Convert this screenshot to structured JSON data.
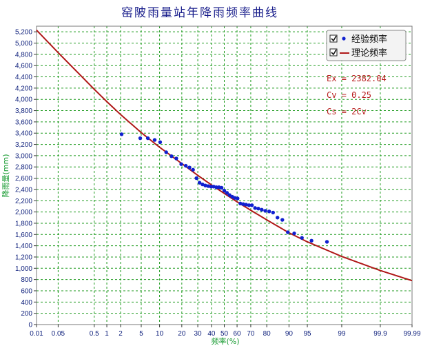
{
  "chart_data": {
    "type": "scatter",
    "title": "窑陂雨量站年降雨频率曲线",
    "xlabel": "频率(%)",
    "ylabel": "降雨量(mm)",
    "x_scale": "probability",
    "xlim": [
      0.01,
      99.99
    ],
    "ylim": [
      0,
      5300
    ],
    "grid": true,
    "x_ticks": [
      0.01,
      0.05,
      0.5,
      1,
      2,
      5,
      10,
      20,
      30,
      40,
      50,
      60,
      70,
      80,
      90,
      95,
      99,
      99.9,
      99.99
    ],
    "x_tick_labels": [
      "0.01",
      "0.05",
      "0.5",
      "1",
      "2",
      "5",
      "10",
      "20",
      "30",
      "40",
      "50",
      "60",
      "70",
      "80",
      "90",
      "95",
      "99",
      "99.9",
      "99.99"
    ],
    "y_ticks": [
      0,
      200,
      400,
      600,
      800,
      1000,
      1200,
      1400,
      1600,
      1800,
      2000,
      2200,
      2400,
      2600,
      2800,
      3000,
      3200,
      3400,
      3600,
      3800,
      4000,
      4200,
      4400,
      4600,
      4800,
      5000,
      5200
    ],
    "y_tick_labels": [
      "0",
      "200",
      "400",
      "600",
      "800",
      "1,000",
      "1,200",
      "1,400",
      "1,600",
      "1,800",
      "2,000",
      "2,200",
      "2,400",
      "2,600",
      "2,800",
      "3,000",
      "3,200",
      "3,400",
      "3,600",
      "3,800",
      "4,000",
      "4,200",
      "4,400",
      "4,600",
      "4,800",
      "5,000",
      "5,200"
    ],
    "legend_position": "top-right",
    "series": [
      {
        "name": "经验频率",
        "kind": "scatter",
        "color": "#1020d0",
        "points": [
          {
            "x": 2.1,
            "y": 3380
          },
          {
            "x": 4.8,
            "y": 3310
          },
          {
            "x": 6.5,
            "y": 3310
          },
          {
            "x": 8.4,
            "y": 3280
          },
          {
            "x": 10.2,
            "y": 3240
          },
          {
            "x": 12.5,
            "y": 3060
          },
          {
            "x": 14.8,
            "y": 2990
          },
          {
            "x": 17.1,
            "y": 2950
          },
          {
            "x": 19.7,
            "y": 2850
          },
          {
            "x": 22.3,
            "y": 2820
          },
          {
            "x": 24.5,
            "y": 2790
          },
          {
            "x": 26.8,
            "y": 2750
          },
          {
            "x": 29.1,
            "y": 2600
          },
          {
            "x": 31.2,
            "y": 2520
          },
          {
            "x": 33.3,
            "y": 2490
          },
          {
            "x": 35.4,
            "y": 2470
          },
          {
            "x": 37.5,
            "y": 2460
          },
          {
            "x": 39.6,
            "y": 2450
          },
          {
            "x": 41.7,
            "y": 2450
          },
          {
            "x": 43.8,
            "y": 2440
          },
          {
            "x": 45.8,
            "y": 2440
          },
          {
            "x": 47.9,
            "y": 2430
          },
          {
            "x": 50.0,
            "y": 2380
          },
          {
            "x": 52.1,
            "y": 2340
          },
          {
            "x": 54.2,
            "y": 2300
          },
          {
            "x": 56.3,
            "y": 2270
          },
          {
            "x": 58.3,
            "y": 2250
          },
          {
            "x": 60.4,
            "y": 2240
          },
          {
            "x": 62.5,
            "y": 2150
          },
          {
            "x": 64.6,
            "y": 2140
          },
          {
            "x": 66.7,
            "y": 2130
          },
          {
            "x": 68.8,
            "y": 2120
          },
          {
            "x": 70.8,
            "y": 2120
          },
          {
            "x": 72.9,
            "y": 2070
          },
          {
            "x": 75.0,
            "y": 2060
          },
          {
            "x": 77.1,
            "y": 2040
          },
          {
            "x": 79.2,
            "y": 2020
          },
          {
            "x": 81.3,
            "y": 2010
          },
          {
            "x": 83.3,
            "y": 1990
          },
          {
            "x": 85.4,
            "y": 1900
          },
          {
            "x": 87.5,
            "y": 1860
          },
          {
            "x": 89.6,
            "y": 1640
          },
          {
            "x": 91.7,
            "y": 1620
          },
          {
            "x": 93.8,
            "y": 1540
          },
          {
            "x": 95.8,
            "y": 1490
          },
          {
            "x": 97.9,
            "y": 1470
          }
        ]
      },
      {
        "name": "理论频率",
        "kind": "line",
        "color": "#b01818",
        "points": [
          {
            "x": 0.01,
            "y": 5230
          },
          {
            "x": 0.05,
            "y": 4830
          },
          {
            "x": 0.5,
            "y": 4180
          },
          {
            "x": 1,
            "y": 3960
          },
          {
            "x": 2,
            "y": 3730
          },
          {
            "x": 5,
            "y": 3410
          },
          {
            "x": 10,
            "y": 3150
          },
          {
            "x": 20,
            "y": 2860
          },
          {
            "x": 30,
            "y": 2650
          },
          {
            "x": 40,
            "y": 2480
          },
          {
            "x": 50,
            "y": 2330
          },
          {
            "x": 60,
            "y": 2180
          },
          {
            "x": 70,
            "y": 2030
          },
          {
            "x": 80,
            "y": 1860
          },
          {
            "x": 90,
            "y": 1630
          },
          {
            "x": 95,
            "y": 1470
          },
          {
            "x": 99,
            "y": 1210
          },
          {
            "x": 99.9,
            "y": 960
          },
          {
            "x": 99.99,
            "y": 780
          }
        ]
      }
    ],
    "annotations": [
      "Ex = 2382.04",
      "Cv = 0.25",
      "Cs = 2Cv"
    ],
    "legend_checked": true
  },
  "colors": {
    "background": "#ffffff",
    "grid": "#1c9a1c",
    "title": "#1a1f8c",
    "tick": "#0b1d7a",
    "axis_label": "#159a2f",
    "scatter": "#1020d0",
    "theory_line": "#b01818",
    "stats": "#b81c1c"
  }
}
